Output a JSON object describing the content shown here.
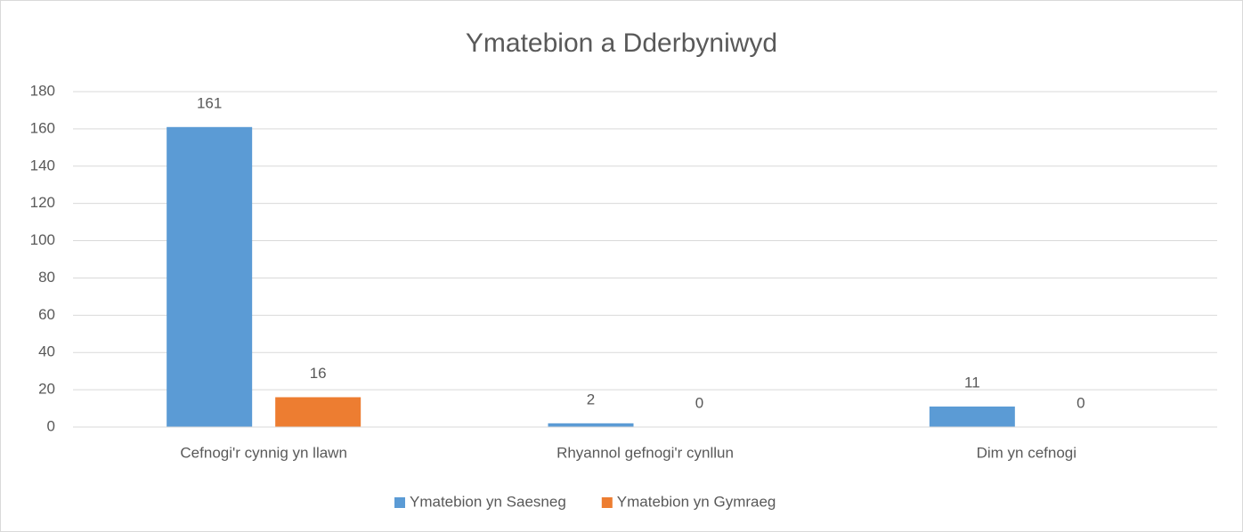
{
  "chart_data": {
    "type": "bar",
    "title": "Ymatebion a Dderbyniwyd",
    "categories": [
      "Cefnogi'r cynnig yn llawn",
      "Rhyannol gefnogi'r cynllun",
      "Dim yn cefnogi"
    ],
    "series": [
      {
        "name": "Ymatebion yn Saesneg",
        "color": "#5b9bd5",
        "values": [
          161,
          2,
          11
        ]
      },
      {
        "name": "Ymatebion yn Gymraeg",
        "color": "#ed7d31",
        "values": [
          16,
          0,
          0
        ]
      }
    ],
    "ylim": [
      0,
      180
    ],
    "yticks": [
      0,
      20,
      40,
      60,
      80,
      100,
      120,
      140,
      160,
      180
    ],
    "grid": true,
    "legend": "bottom"
  }
}
